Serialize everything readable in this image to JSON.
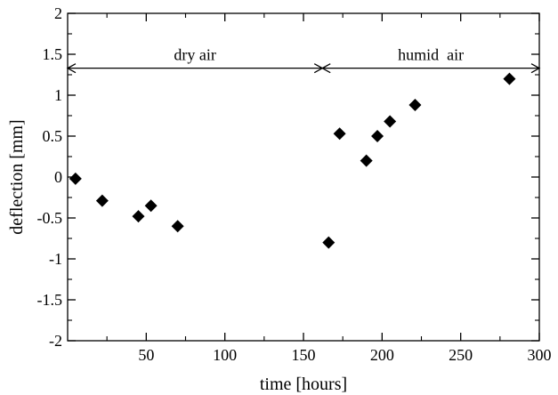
{
  "chart_data": {
    "type": "scatter",
    "xlabel": "time [hours]",
    "ylabel": "deflection [mm]",
    "xlim": [
      0,
      300
    ],
    "ylim": [
      -2,
      2
    ],
    "xticks": [
      50,
      100,
      150,
      200,
      250,
      300
    ],
    "xtick_labels": [
      "50",
      "100",
      "150",
      "200",
      "250",
      "300"
    ],
    "yticks": [
      -2,
      -1.5,
      -1,
      -0.5,
      0,
      0.5,
      1,
      1.5,
      2
    ],
    "ytick_labels": [
      "-2",
      "-1.5",
      "-1",
      "-0.5",
      "0",
      "0.5",
      "1",
      "1.5",
      "2"
    ],
    "grid": false,
    "marker": "diamond",
    "marker_color": "#000000",
    "points": [
      {
        "x": 5,
        "y": -0.02
      },
      {
        "x": 22,
        "y": -0.29
      },
      {
        "x": 45,
        "y": -0.48
      },
      {
        "x": 53,
        "y": -0.35
      },
      {
        "x": 70,
        "y": -0.6
      },
      {
        "x": 166,
        "y": -0.8
      },
      {
        "x": 173,
        "y": 0.53
      },
      {
        "x": 190,
        "y": 0.2
      },
      {
        "x": 197,
        "y": 0.5
      },
      {
        "x": 205,
        "y": 0.68
      },
      {
        "x": 221,
        "y": 0.88
      },
      {
        "x": 281,
        "y": 1.2
      }
    ],
    "annotations": [
      {
        "text": "dry air",
        "x_start": 0,
        "x_end": 162,
        "y": 1.33
      },
      {
        "text": "humid  air",
        "x_start": 162,
        "x_end": 300,
        "y": 1.33
      }
    ]
  }
}
